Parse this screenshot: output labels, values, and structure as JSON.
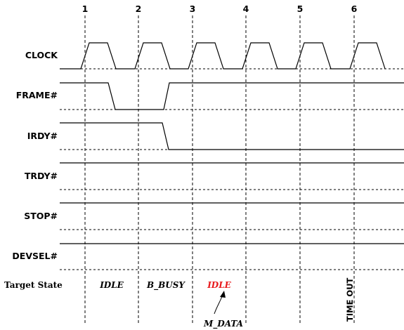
{
  "clock_numbers": [
    "1",
    "2",
    "3",
    "4",
    "5",
    "6"
  ],
  "signals": [
    {
      "key": "clock",
      "label": "CLOCK"
    },
    {
      "key": "frame",
      "label": "FRAME#"
    },
    {
      "key": "irdy",
      "label": "IRDY#"
    },
    {
      "key": "trdy",
      "label": "TRDY#"
    },
    {
      "key": "stop",
      "label": "STOP#"
    },
    {
      "key": "devsel",
      "label": "DEVSEL#"
    }
  ],
  "target_state": {
    "label": "Target State",
    "states": [
      "IDLE",
      "B_BUSY",
      "IDLE"
    ],
    "m_data": "M_DATA",
    "time_out": "TIME OUT"
  },
  "colors": {
    "line": "#000000",
    "highlight": "#e8191c"
  }
}
